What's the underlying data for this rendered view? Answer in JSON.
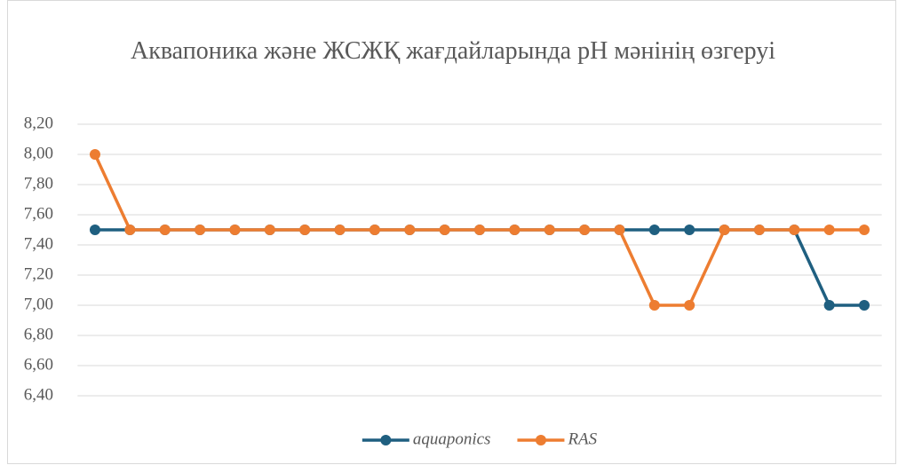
{
  "chart_data": {
    "type": "line",
    "title": "Аквапоника және ЖСЖҚ жағдайларында pH  мәнінің өзгеруі",
    "categories": [
      null,
      null,
      null,
      null,
      null,
      null,
      null,
      null,
      null,
      null,
      null,
      null,
      null,
      null,
      null,
      null,
      null,
      null,
      null,
      null,
      null,
      null,
      null
    ],
    "series": [
      {
        "name": "aquaponics",
        "color": "#1f5f80",
        "values": [
          7.5,
          7.5,
          7.5,
          7.5,
          7.5,
          7.5,
          7.5,
          7.5,
          7.5,
          7.5,
          7.5,
          7.5,
          7.5,
          7.5,
          7.5,
          7.5,
          7.5,
          7.5,
          7.5,
          7.5,
          7.5,
          7.0,
          7.0
        ]
      },
      {
        "name": "RAS",
        "color": "#ed7d31",
        "values": [
          8.0,
          7.5,
          7.5,
          7.5,
          7.5,
          7.5,
          7.5,
          7.5,
          7.5,
          7.5,
          7.5,
          7.5,
          7.5,
          7.5,
          7.5,
          7.5,
          7.0,
          7.0,
          7.5,
          7.5,
          7.5,
          7.5,
          7.5
        ]
      }
    ],
    "ylim": [
      6.4,
      8.2
    ],
    "yticks": [
      {
        "value": 6.4,
        "label": "6,40"
      },
      {
        "value": 6.6,
        "label": "6,60"
      },
      {
        "value": 6.8,
        "label": "6,80"
      },
      {
        "value": 7.0,
        "label": "7,00"
      },
      {
        "value": 7.2,
        "label": "7,20"
      },
      {
        "value": 7.4,
        "label": "7,40"
      },
      {
        "value": 7.6,
        "label": "7,60"
      },
      {
        "value": 7.8,
        "label": "7,80"
      },
      {
        "value": 8.0,
        "label": "8,00"
      },
      {
        "value": 8.2,
        "label": "8,20"
      }
    ],
    "grid": true,
    "legend": "bottom"
  }
}
